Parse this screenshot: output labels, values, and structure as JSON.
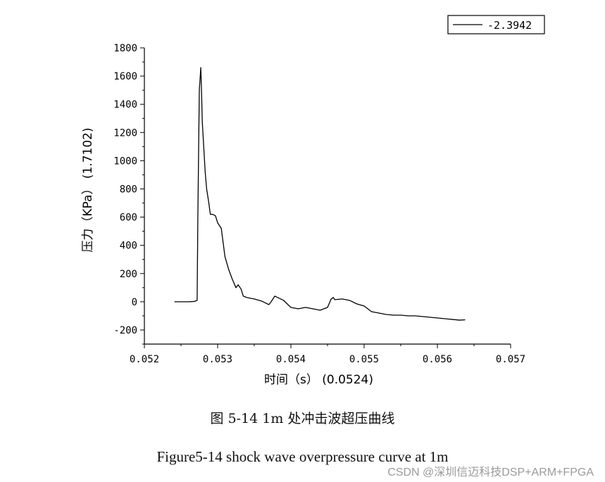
{
  "chart_data": {
    "type": "line",
    "legend": {
      "label": "-2.3942",
      "position": "top-right"
    },
    "xlabel": "时间（s）  (0.0524)",
    "ylabel": "压力（KPa）  (1.7102)",
    "xlim": [
      0.052,
      0.057
    ],
    "ylim": [
      -300,
      1800
    ],
    "x_ticks": [
      0.052,
      0.053,
      0.054,
      0.055,
      0.056,
      0.057
    ],
    "x_tick_labels": [
      "0.052",
      "0.053",
      "0.054",
      "0.055",
      "0.056",
      "0.057"
    ],
    "y_ticks": [
      -200,
      0,
      200,
      400,
      600,
      800,
      1000,
      1200,
      1400,
      1600,
      1800
    ],
    "y_tick_labels": [
      "-200",
      "0",
      "200",
      "400",
      "600",
      "800",
      "1000",
      "1200",
      "1400",
      "1600",
      "1800"
    ],
    "grid": false,
    "series": [
      {
        "name": "-2.3942",
        "color": "#000000",
        "x": [
          0.05241,
          0.0525,
          0.0526,
          0.05268,
          0.05272,
          0.05273,
          0.05275,
          0.05277,
          0.05278,
          0.05279,
          0.05281,
          0.05283,
          0.05285,
          0.05288,
          0.0529,
          0.05293,
          0.05297,
          0.053,
          0.05305,
          0.0531,
          0.05315,
          0.0532,
          0.05325,
          0.05328,
          0.05332,
          0.05335,
          0.0534,
          0.0535,
          0.0536,
          0.0537,
          0.05373,
          0.05378,
          0.05382,
          0.0539,
          0.054,
          0.0541,
          0.0542,
          0.0543,
          0.0544,
          0.0545,
          0.05455,
          0.05458,
          0.0546,
          0.0547,
          0.0548,
          0.0549,
          0.055,
          0.0551,
          0.0552,
          0.0553,
          0.0554,
          0.0555,
          0.0556,
          0.0557,
          0.0558,
          0.0559,
          0.056,
          0.0561,
          0.0562,
          0.0563,
          0.05638
        ],
        "y": [
          0,
          0,
          0,
          2,
          10,
          600,
          1500,
          1660,
          1500,
          1280,
          1100,
          920,
          800,
          700,
          620,
          620,
          610,
          560,
          520,
          320,
          230,
          160,
          100,
          120,
          90,
          40,
          30,
          20,
          5,
          -20,
          0,
          40,
          30,
          10,
          -40,
          -50,
          -40,
          -50,
          -60,
          -40,
          20,
          30,
          15,
          20,
          10,
          -15,
          -30,
          -70,
          -80,
          -90,
          -95,
          -95,
          -100,
          -100,
          -105,
          -110,
          -115,
          -120,
          -125,
          -130,
          -128
        ]
      }
    ]
  },
  "caption_cn": "图 5-14 1m 处冲击波超压曲线",
  "caption_en": "Figure5-14 shock wave overpressure curve at 1m",
  "watermark": "CSDN @深圳信迈科技DSP+ARM+FPGA"
}
